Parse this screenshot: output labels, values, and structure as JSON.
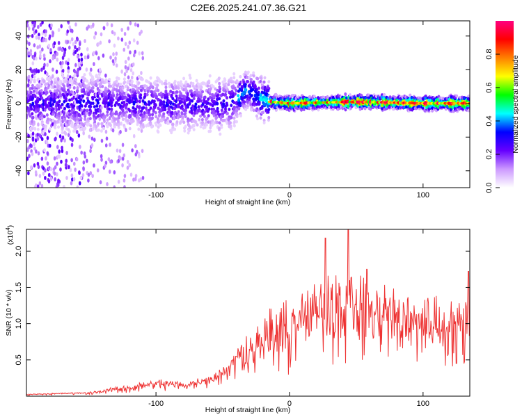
{
  "title": "C2E6.2025.241.07.36.G21",
  "chart_data": [
    {
      "type": "heatmap",
      "xlabel": "Height of straight line (km)",
      "ylabel": "Frequency (Hz)",
      "xlim": [
        -197,
        135
      ],
      "ylim": [
        -50,
        49
      ],
      "xticks": [
        -100,
        0,
        100
      ],
      "xtick_labels": [
        "-100",
        "0",
        "100"
      ],
      "yticks": [
        -40,
        -20,
        0,
        20,
        40
      ],
      "ytick_labels": [
        "-40",
        "-20",
        "0",
        "20",
        "40"
      ],
      "colorbar": {
        "label": "Normalized spectral amplitude",
        "range": [
          0,
          1
        ],
        "ticks": [
          "0.0",
          "0.2",
          "0.4",
          "0.6",
          "0.8"
        ],
        "colors": [
          "#ffffff",
          "#cc99ff",
          "#6600ff",
          "#0000ff",
          "#00ffff",
          "#00ff00",
          "#ffff00",
          "#ff8000",
          "#ff0000",
          "#ff0080"
        ]
      },
      "center_line_freq_hz": [
        [
          -197,
          0
        ],
        [
          -100,
          0
        ],
        [
          -60,
          -1
        ],
        [
          -45,
          0
        ],
        [
          -38,
          4
        ],
        [
          -33,
          8
        ],
        [
          -28,
          6
        ],
        [
          -22,
          3
        ],
        [
          -15,
          1
        ],
        [
          0,
          0
        ],
        [
          50,
          1
        ],
        [
          100,
          0
        ],
        [
          135,
          0
        ]
      ]
    },
    {
      "type": "line",
      "xlabel": "Height of straight line (km)",
      "ylabel": "SNR (10 * v/v)",
      "y_multiplier": "(x10",
      "y_multiplier_exp": "4",
      "y_multiplier_close": ")",
      "xlim": [
        -197,
        135
      ],
      "ylim": [
        0,
        2.3
      ],
      "xticks": [
        -100,
        0,
        100
      ],
      "xtick_labels": [
        "-100",
        "0",
        "100"
      ],
      "yticks": [
        0.5,
        1.0,
        1.5,
        2.0
      ],
      "ytick_labels": [
        "0.5",
        "1.0",
        "1.5",
        "2.0"
      ],
      "line_color": "#ee3333",
      "envelope_x4": [
        [
          -197,
          0.02,
          0.03
        ],
        [
          -150,
          0.03,
          0.06
        ],
        [
          -130,
          0.05,
          0.14
        ],
        [
          -100,
          0.08,
          0.25
        ],
        [
          -80,
          0.1,
          0.2
        ],
        [
          -60,
          0.15,
          0.3
        ],
        [
          -45,
          0.25,
          0.5
        ],
        [
          -35,
          0.3,
          0.85
        ],
        [
          -25,
          0.35,
          1.0
        ],
        [
          -15,
          0.35,
          1.25
        ],
        [
          -5,
          0.4,
          1.35
        ],
        [
          5,
          0.45,
          1.55
        ],
        [
          20,
          0.5,
          1.7
        ],
        [
          30,
          0.55,
          1.9
        ],
        [
          45,
          0.6,
          1.8
        ],
        [
          60,
          0.65,
          1.7
        ],
        [
          80,
          0.6,
          1.55
        ],
        [
          100,
          0.55,
          1.5
        ],
        [
          120,
          0.45,
          1.45
        ],
        [
          135,
          0.7,
          1.6
        ]
      ],
      "peaks_x4": [
        [
          -40,
          0.55
        ],
        [
          27,
          2.18
        ],
        [
          44,
          2.3
        ],
        [
          58,
          1.75
        ],
        [
          125,
          0.45
        ],
        [
          134,
          1.72
        ]
      ]
    }
  ]
}
